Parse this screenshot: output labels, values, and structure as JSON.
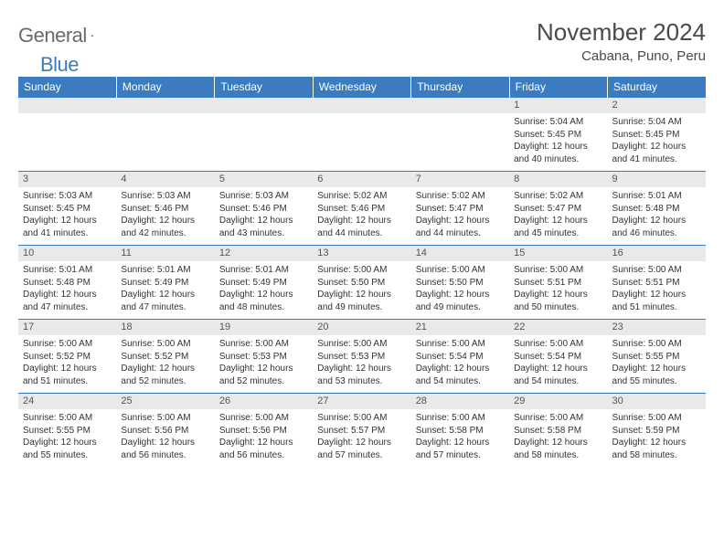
{
  "logo": {
    "general": "General",
    "blue": "Blue"
  },
  "title": "November 2024",
  "location": "Cabana, Puno, Peru",
  "colors": {
    "header_bg": "#3b7bbf",
    "header_text": "#ffffff",
    "daynum_bg": "#e9e9e9",
    "border": "#3b7bbf",
    "body_text": "#333333",
    "title_text": "#4a4a4a",
    "logo_gray": "#6a6a6a"
  },
  "weekdays": [
    "Sunday",
    "Monday",
    "Tuesday",
    "Wednesday",
    "Thursday",
    "Friday",
    "Saturday"
  ],
  "weeks": [
    [
      {
        "blank": true
      },
      {
        "blank": true
      },
      {
        "blank": true
      },
      {
        "blank": true
      },
      {
        "blank": true
      },
      {
        "day": "1",
        "sunrise": "Sunrise: 5:04 AM",
        "sunset": "Sunset: 5:45 PM",
        "daylight": "Daylight: 12 hours and 40 minutes."
      },
      {
        "day": "2",
        "sunrise": "Sunrise: 5:04 AM",
        "sunset": "Sunset: 5:45 PM",
        "daylight": "Daylight: 12 hours and 41 minutes."
      }
    ],
    [
      {
        "day": "3",
        "sunrise": "Sunrise: 5:03 AM",
        "sunset": "Sunset: 5:45 PM",
        "daylight": "Daylight: 12 hours and 41 minutes."
      },
      {
        "day": "4",
        "sunrise": "Sunrise: 5:03 AM",
        "sunset": "Sunset: 5:46 PM",
        "daylight": "Daylight: 12 hours and 42 minutes."
      },
      {
        "day": "5",
        "sunrise": "Sunrise: 5:03 AM",
        "sunset": "Sunset: 5:46 PM",
        "daylight": "Daylight: 12 hours and 43 minutes."
      },
      {
        "day": "6",
        "sunrise": "Sunrise: 5:02 AM",
        "sunset": "Sunset: 5:46 PM",
        "daylight": "Daylight: 12 hours and 44 minutes."
      },
      {
        "day": "7",
        "sunrise": "Sunrise: 5:02 AM",
        "sunset": "Sunset: 5:47 PM",
        "daylight": "Daylight: 12 hours and 44 minutes."
      },
      {
        "day": "8",
        "sunrise": "Sunrise: 5:02 AM",
        "sunset": "Sunset: 5:47 PM",
        "daylight": "Daylight: 12 hours and 45 minutes."
      },
      {
        "day": "9",
        "sunrise": "Sunrise: 5:01 AM",
        "sunset": "Sunset: 5:48 PM",
        "daylight": "Daylight: 12 hours and 46 minutes."
      }
    ],
    [
      {
        "day": "10",
        "sunrise": "Sunrise: 5:01 AM",
        "sunset": "Sunset: 5:48 PM",
        "daylight": "Daylight: 12 hours and 47 minutes."
      },
      {
        "day": "11",
        "sunrise": "Sunrise: 5:01 AM",
        "sunset": "Sunset: 5:49 PM",
        "daylight": "Daylight: 12 hours and 47 minutes."
      },
      {
        "day": "12",
        "sunrise": "Sunrise: 5:01 AM",
        "sunset": "Sunset: 5:49 PM",
        "daylight": "Daylight: 12 hours and 48 minutes."
      },
      {
        "day": "13",
        "sunrise": "Sunrise: 5:00 AM",
        "sunset": "Sunset: 5:50 PM",
        "daylight": "Daylight: 12 hours and 49 minutes."
      },
      {
        "day": "14",
        "sunrise": "Sunrise: 5:00 AM",
        "sunset": "Sunset: 5:50 PM",
        "daylight": "Daylight: 12 hours and 49 minutes."
      },
      {
        "day": "15",
        "sunrise": "Sunrise: 5:00 AM",
        "sunset": "Sunset: 5:51 PM",
        "daylight": "Daylight: 12 hours and 50 minutes."
      },
      {
        "day": "16",
        "sunrise": "Sunrise: 5:00 AM",
        "sunset": "Sunset: 5:51 PM",
        "daylight": "Daylight: 12 hours and 51 minutes."
      }
    ],
    [
      {
        "day": "17",
        "sunrise": "Sunrise: 5:00 AM",
        "sunset": "Sunset: 5:52 PM",
        "daylight": "Daylight: 12 hours and 51 minutes."
      },
      {
        "day": "18",
        "sunrise": "Sunrise: 5:00 AM",
        "sunset": "Sunset: 5:52 PM",
        "daylight": "Daylight: 12 hours and 52 minutes."
      },
      {
        "day": "19",
        "sunrise": "Sunrise: 5:00 AM",
        "sunset": "Sunset: 5:53 PM",
        "daylight": "Daylight: 12 hours and 52 minutes."
      },
      {
        "day": "20",
        "sunrise": "Sunrise: 5:00 AM",
        "sunset": "Sunset: 5:53 PM",
        "daylight": "Daylight: 12 hours and 53 minutes."
      },
      {
        "day": "21",
        "sunrise": "Sunrise: 5:00 AM",
        "sunset": "Sunset: 5:54 PM",
        "daylight": "Daylight: 12 hours and 54 minutes."
      },
      {
        "day": "22",
        "sunrise": "Sunrise: 5:00 AM",
        "sunset": "Sunset: 5:54 PM",
        "daylight": "Daylight: 12 hours and 54 minutes."
      },
      {
        "day": "23",
        "sunrise": "Sunrise: 5:00 AM",
        "sunset": "Sunset: 5:55 PM",
        "daylight": "Daylight: 12 hours and 55 minutes."
      }
    ],
    [
      {
        "day": "24",
        "sunrise": "Sunrise: 5:00 AM",
        "sunset": "Sunset: 5:55 PM",
        "daylight": "Daylight: 12 hours and 55 minutes."
      },
      {
        "day": "25",
        "sunrise": "Sunrise: 5:00 AM",
        "sunset": "Sunset: 5:56 PM",
        "daylight": "Daylight: 12 hours and 56 minutes."
      },
      {
        "day": "26",
        "sunrise": "Sunrise: 5:00 AM",
        "sunset": "Sunset: 5:56 PM",
        "daylight": "Daylight: 12 hours and 56 minutes."
      },
      {
        "day": "27",
        "sunrise": "Sunrise: 5:00 AM",
        "sunset": "Sunset: 5:57 PM",
        "daylight": "Daylight: 12 hours and 57 minutes."
      },
      {
        "day": "28",
        "sunrise": "Sunrise: 5:00 AM",
        "sunset": "Sunset: 5:58 PM",
        "daylight": "Daylight: 12 hours and 57 minutes."
      },
      {
        "day": "29",
        "sunrise": "Sunrise: 5:00 AM",
        "sunset": "Sunset: 5:58 PM",
        "daylight": "Daylight: 12 hours and 58 minutes."
      },
      {
        "day": "30",
        "sunrise": "Sunrise: 5:00 AM",
        "sunset": "Sunset: 5:59 PM",
        "daylight": "Daylight: 12 hours and 58 minutes."
      }
    ]
  ]
}
